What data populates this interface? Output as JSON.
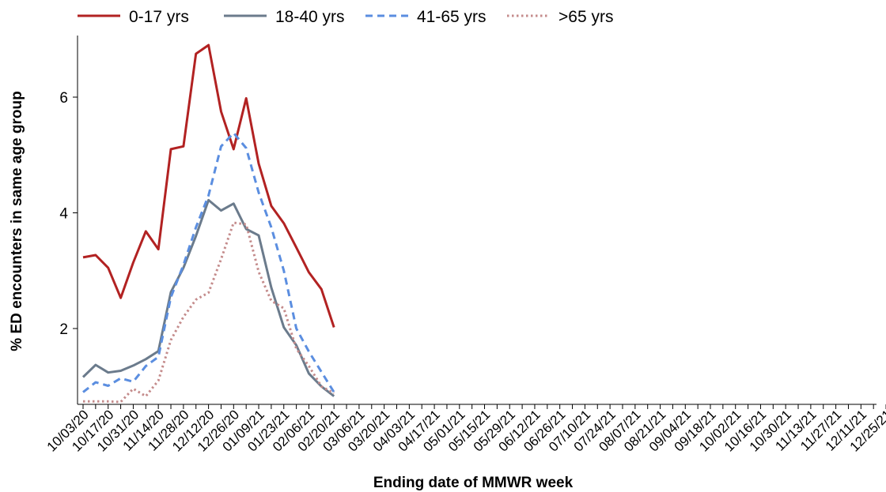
{
  "chart_data": {
    "type": "line",
    "xlabel": "Ending date of MMWR week",
    "ylabel": "% ED encounters in same age group",
    "y_ticks": [
      "2",
      "4",
      "6"
    ],
    "y_tick_values": [
      2,
      4,
      6
    ],
    "ylim": [
      0.75,
      7.0
    ],
    "x_tick_labels": [
      "10/03/20",
      "10/17/20",
      "10/31/20",
      "11/14/20",
      "11/28/20",
      "12/12/20",
      "12/26/20",
      "01/09/21",
      "01/23/21",
      "02/06/21",
      "02/20/21",
      "03/06/21",
      "03/20/21",
      "04/03/21",
      "04/17/21",
      "05/01/21",
      "05/15/21",
      "05/29/21",
      "06/12/21",
      "06/26/21",
      "07/10/21",
      "07/24/21",
      "08/07/21",
      "08/21/21",
      "09/04/21",
      "09/18/21",
      "10/02/21",
      "10/16/21",
      "10/30/21",
      "11/13/21",
      "11/27/21",
      "12/11/21",
      "12/25/21"
    ],
    "weeks": [
      "10/03/20",
      "10/10/20",
      "10/17/20",
      "10/24/20",
      "10/31/20",
      "11/07/20",
      "11/14/20",
      "11/21/20",
      "11/28/20",
      "12/05/20",
      "12/12/20",
      "12/19/20",
      "12/26/20",
      "01/02/21",
      "01/09/21",
      "01/16/21",
      "01/23/21",
      "01/30/21",
      "02/06/21",
      "02/13/21",
      "02/20/21"
    ],
    "series": [
      {
        "name": "0-17 yrs",
        "color": "#b22222",
        "dash": "solid",
        "values": [
          3.23,
          3.27,
          3.05,
          2.53,
          3.14,
          3.68,
          3.37,
          5.1,
          5.15,
          6.75,
          6.9,
          5.75,
          5.1,
          5.98,
          4.85,
          4.12,
          3.82,
          3.4,
          2.97,
          2.68,
          2.02
        ]
      },
      {
        "name": "18-40 yrs",
        "color": "#6b7b8c",
        "dash": "solid",
        "values": [
          1.16,
          1.37,
          1.24,
          1.27,
          1.36,
          1.47,
          1.61,
          2.63,
          3.05,
          3.6,
          4.22,
          4.04,
          4.16,
          3.72,
          3.61,
          2.71,
          2.02,
          1.71,
          1.22,
          1.0,
          0.83
        ]
      },
      {
        "name": "41-65 yrs",
        "color": "#5b8ee0",
        "dash": "dashed",
        "values": [
          0.9,
          1.07,
          1.01,
          1.14,
          1.08,
          1.35,
          1.51,
          2.54,
          3.1,
          3.75,
          4.3,
          5.15,
          5.38,
          5.12,
          4.35,
          3.75,
          3.0,
          2.0,
          1.6,
          1.25,
          0.9
        ]
      },
      {
        "name": ">65 yrs",
        "color": "#c48b8b",
        "dash": "dotted",
        "values": [
          0.74,
          0.74,
          0.74,
          0.73,
          0.96,
          0.83,
          1.1,
          1.8,
          2.2,
          2.5,
          2.62,
          3.2,
          3.83,
          3.8,
          2.98,
          2.48,
          2.35,
          1.65,
          1.35,
          1.0,
          0.88
        ]
      }
    ],
    "legend_position": "top"
  }
}
